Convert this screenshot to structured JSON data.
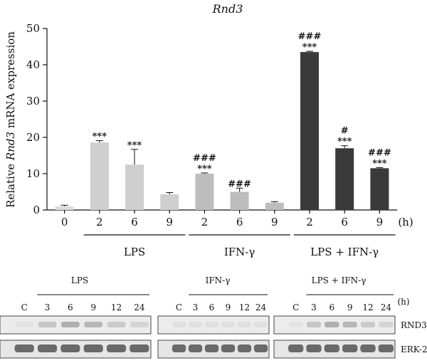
{
  "chart_data": {
    "type": "bar",
    "title": "Rnd3",
    "ylabel_prefix": "Relative ",
    "ylabel_italic": "Rnd3",
    "ylabel_suffix": " mRNA expression",
    "xunit": "(h)",
    "ylim": [
      0,
      50
    ],
    "yticks": [
      "0",
      "10",
      "20",
      "30",
      "40",
      "50"
    ],
    "bars": [
      {
        "label": "0",
        "value": 1.0,
        "error": 0.3,
        "color": "#dcdcdc",
        "sig1": "",
        "sig2": ""
      },
      {
        "label": "2",
        "value": 18.6,
        "error": 0.5,
        "color": "#cfcfcf",
        "sig1": "***",
        "sig2": ""
      },
      {
        "label": "6",
        "value": 12.5,
        "error": 4.2,
        "color": "#cfcfcf",
        "sig1": "***",
        "sig2": ""
      },
      {
        "label": "9",
        "value": 4.3,
        "error": 0.5,
        "color": "#cfcfcf",
        "sig1": "",
        "sig2": ""
      },
      {
        "label": "2",
        "value": 10.0,
        "error": 0.2,
        "color": "#bdbdbd",
        "sig1": "***",
        "sig2": "###"
      },
      {
        "label": "6",
        "value": 5.0,
        "error": 1.0,
        "color": "#bdbdbd",
        "sig1": "",
        "sig2": "###"
      },
      {
        "label": "9",
        "value": 2.0,
        "error": 0.3,
        "color": "#bdbdbd",
        "sig1": "",
        "sig2": ""
      },
      {
        "label": "2",
        "value": 43.5,
        "error": 0.2,
        "color": "#3a3a3a",
        "sig1": "***",
        "sig2": "###"
      },
      {
        "label": "6",
        "value": 17.0,
        "error": 0.7,
        "color": "#3a3a3a",
        "sig1": "***",
        "sig2": "#"
      },
      {
        "label": "9",
        "value": 11.5,
        "error": 0.2,
        "color": "#3a3a3a",
        "sig1": "***",
        "sig2": "###"
      }
    ],
    "groups": [
      {
        "label": "LPS",
        "from": 1,
        "to": 3
      },
      {
        "label": "IFN-γ",
        "from": 4,
        "to": 6
      },
      {
        "label": "LPS + IFN-γ",
        "from": 7,
        "to": 9
      }
    ]
  },
  "blot": {
    "unit": "(h)",
    "panels": [
      {
        "title": "LPS",
        "lanes": [
          "C",
          "3",
          "6",
          "9",
          "12",
          "24"
        ]
      },
      {
        "title": "IFN-γ",
        "lanes": [
          "C",
          "3",
          "6",
          "9",
          "12",
          "24"
        ]
      },
      {
        "title": "LPS + IFN-γ",
        "lanes": [
          "C",
          "3",
          "6",
          "9",
          "12",
          "24"
        ]
      }
    ],
    "rows": [
      "RND3",
      "ERK-2"
    ]
  }
}
